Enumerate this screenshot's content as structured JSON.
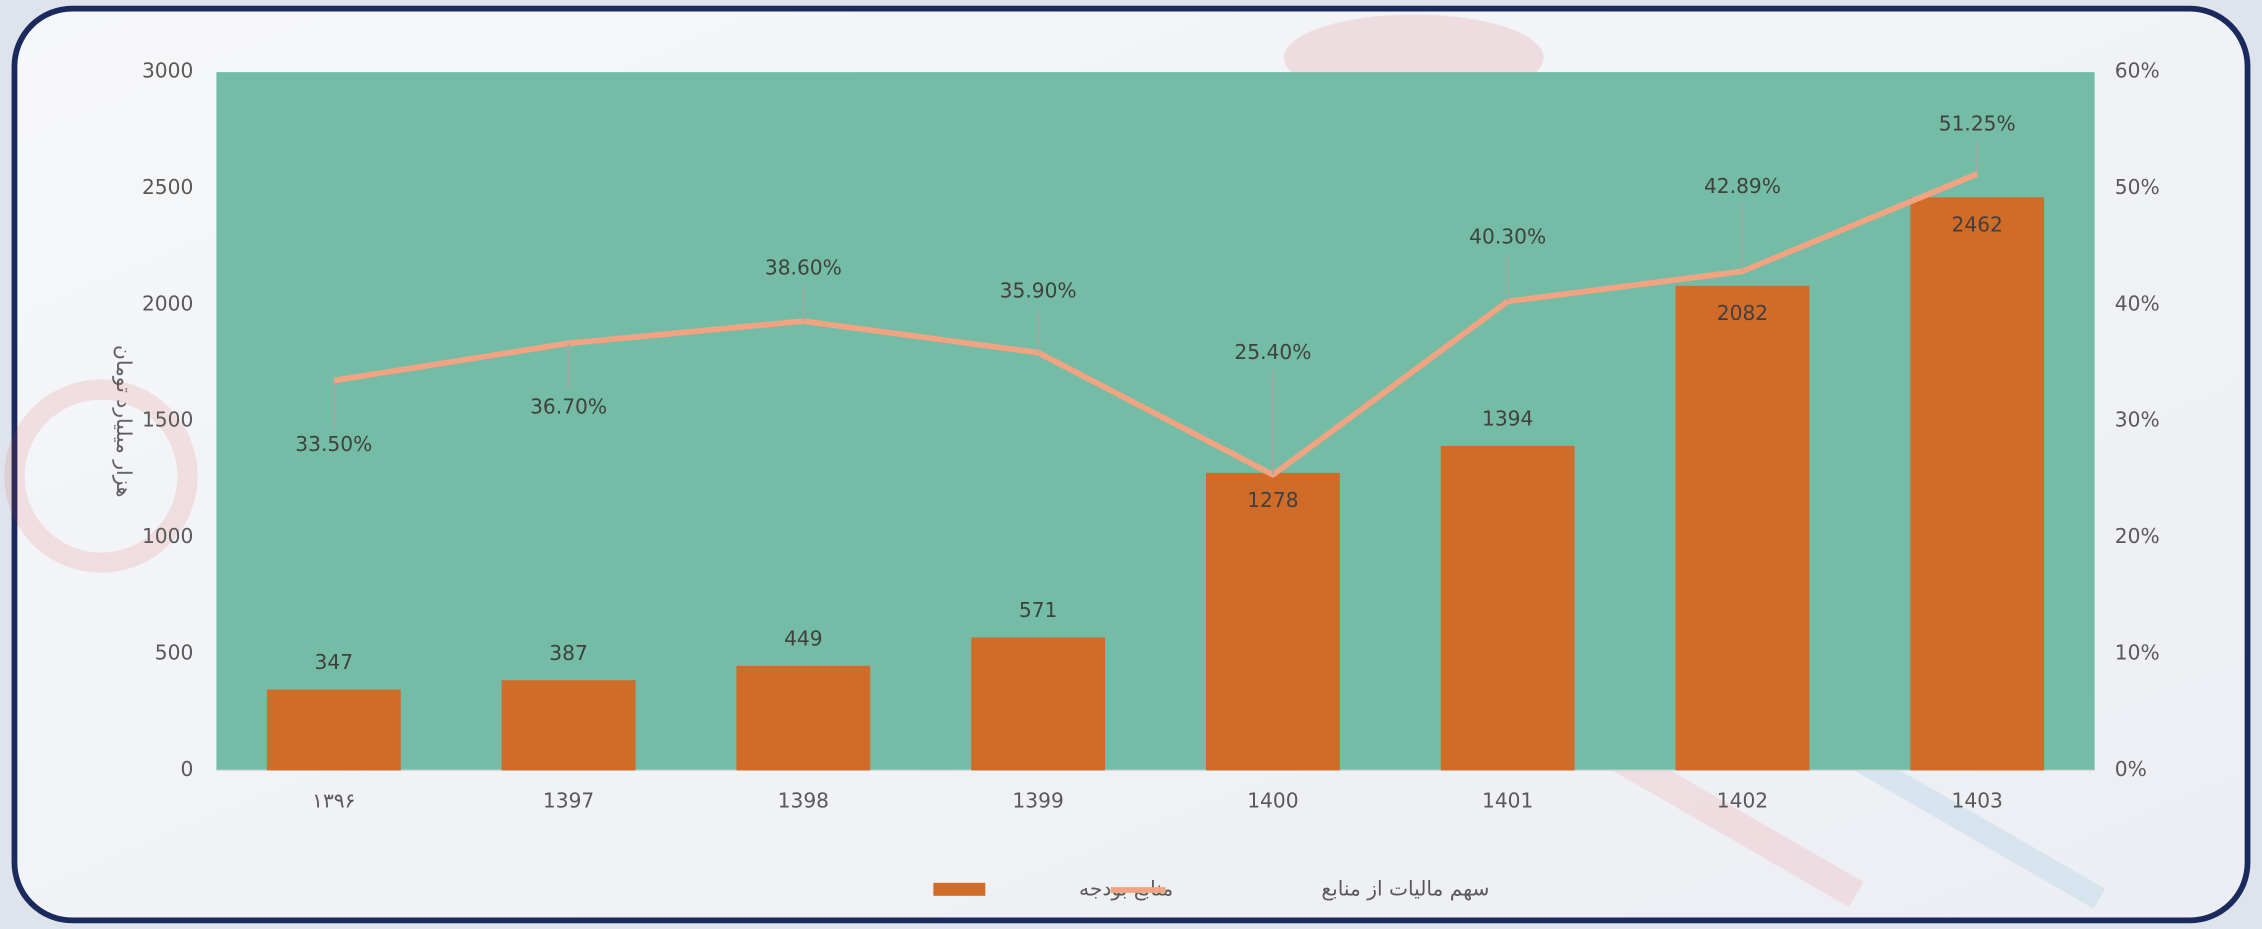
{
  "chart_data": {
    "type": "bar",
    "y_label": "هزار میلیارد تومان",
    "categories": [
      "۱۳۹۶",
      "1397",
      "1398",
      "1399",
      "1400",
      "1401",
      "1402",
      "1403"
    ],
    "series": [
      {
        "name": "منابع بودجه",
        "type": "bar",
        "color": "#d06b28",
        "values": [
          347,
          387,
          449,
          571,
          1278,
          1394,
          2082,
          2462
        ]
      },
      {
        "name": "سهم مالیات از منابع",
        "type": "line",
        "axis": "y2",
        "color": "#f2a382",
        "values": [
          33.5,
          36.7,
          38.6,
          35.9,
          25.4,
          40.3,
          42.89,
          51.25
        ],
        "value_labels": [
          "33.50%",
          "36.70%",
          "38.60%",
          "35.90%",
          "25.40%",
          "40.30%",
          "42.89%",
          "51.25%"
        ]
      }
    ],
    "ylim": [
      0,
      3000
    ],
    "yticks": [
      0,
      500,
      1000,
      1500,
      2000,
      2500,
      3000
    ],
    "y2lim": [
      0,
      60
    ],
    "y2ticks": [
      {
        "value": 0,
        "label": "0%"
      },
      {
        "value": 10,
        "label": "10%"
      },
      {
        "value": 20,
        "label": "20%"
      },
      {
        "value": 30,
        "label": "30%"
      },
      {
        "value": 40,
        "label": "40%"
      },
      {
        "value": 50,
        "label": "50%"
      },
      {
        "value": 60,
        "label": "60%"
      }
    ],
    "plot_background": "#74bca6",
    "legend": "bottom"
  }
}
